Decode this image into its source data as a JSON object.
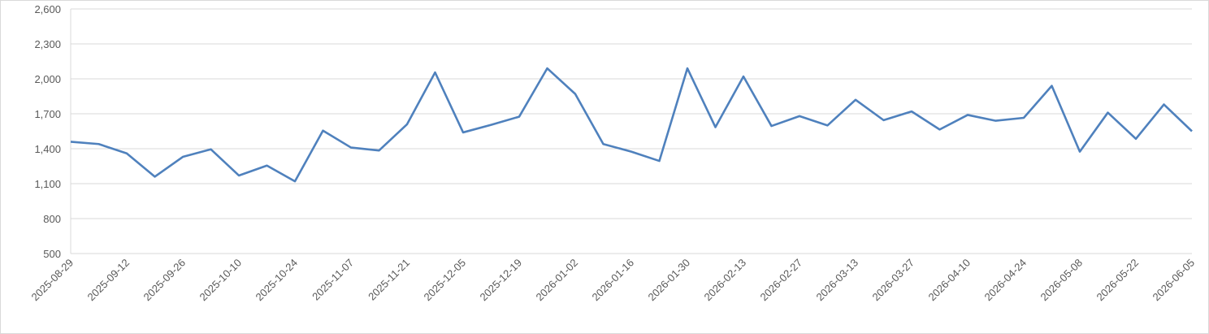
{
  "chart_data": {
    "type": "line",
    "categories": [
      "2025-08-29",
      null,
      "2025-09-12",
      null,
      "2025-09-26",
      null,
      "2025-10-10",
      null,
      "2025-10-24",
      null,
      "2025-11-07",
      null,
      "2025-11-21",
      null,
      "2025-12-05",
      null,
      "2025-12-19",
      null,
      "2026-01-02",
      null,
      "2026-01-16",
      null,
      "2026-01-30",
      null,
      "2026-02-13",
      null,
      "2026-02-27",
      null,
      "2026-03-13",
      null,
      "2026-03-27",
      null,
      "2026-04-10",
      null,
      "2026-04-24",
      null,
      "2026-05-08",
      null,
      "2026-05-22",
      null,
      "2026-06-05"
    ],
    "values": [
      1460,
      1440,
      1360,
      1160,
      1330,
      1395,
      1170,
      1255,
      1120,
      1555,
      1410,
      1385,
      1610,
      2055,
      1540,
      1605,
      1675,
      2090,
      1870,
      1440,
      1375,
      1295,
      2090,
      1585,
      2020,
      1595,
      1680,
      1600,
      1820,
      1645,
      1720,
      1565,
      1690,
      1640,
      1665,
      1940,
      1375,
      1710,
      1485,
      1780,
      1550
    ],
    "color": "#4f81bd",
    "ylim": [
      500,
      2600
    ],
    "yticks": [
      500,
      800,
      {
        "value": 1100,
        "label": "1,100"
      },
      {
        "value": 1400,
        "label": "1,400"
      },
      {
        "value": 1700,
        "label": "1,700"
      },
      {
        "value": 2000,
        "label": "2,000"
      },
      {
        "value": 2300,
        "label": "2,300"
      },
      {
        "value": 2600,
        "label": "2,600"
      }
    ],
    "grid": true
  }
}
